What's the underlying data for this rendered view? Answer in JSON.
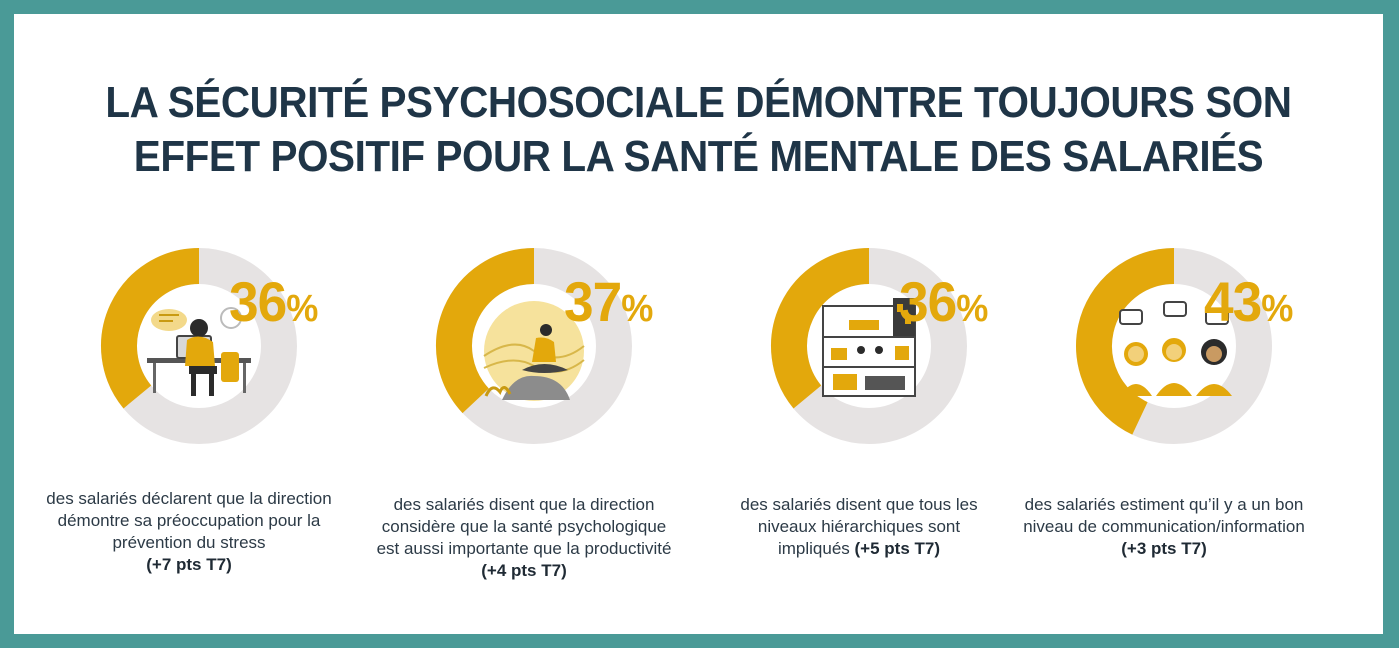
{
  "title_lines": [
    "LA SÉCURITÉ PSYCHOSOCIALE DÉMONTRE TOUJOURS SON",
    "EFFET POSITIF POUR LA SANTÉ MENTALE DES SALARIÉS"
  ],
  "colors": {
    "frame": "#4a9a97",
    "accent": "#e3a80c",
    "track": "#e6e3e3",
    "title": "#1f3547"
  },
  "chart_data": {
    "type": "pie",
    "title": "LA SÉCURITÉ PSYCHOSOCIALE DÉMONTRE TOUJOURS SON EFFET POSITIF POUR LA SANTÉ MENTALE DES SALARIÉS",
    "items": [
      {
        "value": 36,
        "value_text": "36",
        "unit": "%",
        "caption_lines": [
          "des salariés déclarent que la direction",
          "démontre sa préoccupation pour la",
          "prévention du stress"
        ],
        "delta": "(+7 pts T7)",
        "icon": "stressed-worker-illustration"
      },
      {
        "value": 37,
        "value_text": "37",
        "unit": "%",
        "caption_lines": [
          "des salariés disent que la direction",
          "considère que la santé psychologique",
          "est aussi importante que la productivité"
        ],
        "delta": "(+4 pts T7)",
        "icon": "meditation-illustration"
      },
      {
        "value": 36,
        "value_text": "36",
        "unit": "%",
        "caption_lines": [
          "des salariés disent que tous les",
          "niveaux hiérarchiques sont",
          "impliqués"
        ],
        "delta": "(+5 pts T7)",
        "icon": "office-building-illustration"
      },
      {
        "value": 43,
        "value_text": "43",
        "unit": "%",
        "caption_lines": [
          "des salariés estiment qu’il y a un bon",
          "niveau de communication/information"
        ],
        "delta": "(+3 pts T7)",
        "icon": "people-talking-illustration"
      }
    ]
  }
}
